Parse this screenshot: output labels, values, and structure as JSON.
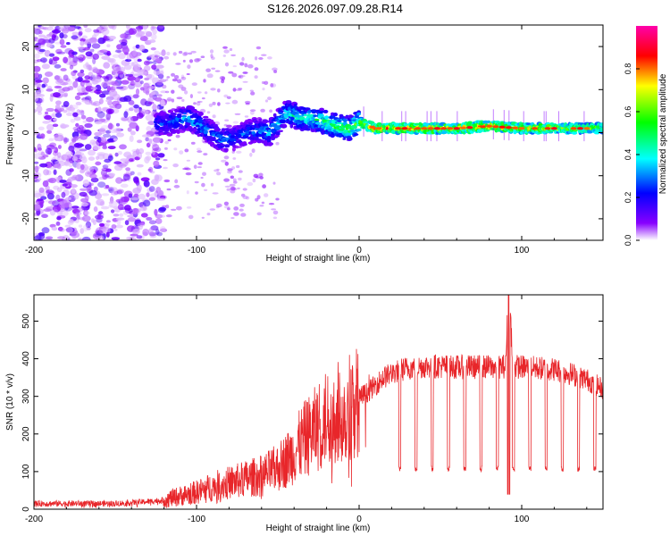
{
  "figure": {
    "title": "S126.2026.097.09.28.R14"
  },
  "chart_data": [
    {
      "type": "heatmap",
      "title": "S126.2026.097.09.28.R14",
      "xlabel": "Height of straight line (km)",
      "ylabel": "Frequency (Hz)",
      "xlim": [
        -200,
        150
      ],
      "ylim": [
        -25,
        25
      ],
      "xticks": [
        -200,
        -100,
        0,
        100
      ],
      "yticks": [
        -20,
        -10,
        0,
        10,
        20
      ],
      "colorbar": {
        "label": "Normalized spectral amplitude",
        "range": [
          0.0,
          1.0
        ],
        "ticks": [
          0.0,
          0.2,
          0.4,
          0.6,
          0.8
        ],
        "tick_labels": [
          "0.0",
          "0.2",
          "0.4",
          "0.6",
          "0.8"
        ],
        "colors": [
          "#ffffff",
          "#8800ff",
          "#0000ff",
          "#00ffff",
          "#00ff00",
          "#ffff00",
          "#ff0000",
          "#ff00aa"
        ]
      },
      "ridge": {
        "description_points": [
          {
            "x": -120,
            "freq": 2.0,
            "amp": 0.25
          },
          {
            "x": -105,
            "freq": 3.5,
            "amp": 0.35
          },
          {
            "x": -95,
            "freq": 1.0,
            "amp": 0.3
          },
          {
            "x": -85,
            "freq": -1.5,
            "amp": 0.3
          },
          {
            "x": -75,
            "freq": -1.0,
            "amp": 0.25
          },
          {
            "x": -65,
            "freq": 0.5,
            "amp": 0.3
          },
          {
            "x": -55,
            "freq": 0.0,
            "amp": 0.35
          },
          {
            "x": -45,
            "freq": 4.5,
            "amp": 0.4
          },
          {
            "x": -35,
            "freq": 3.5,
            "amp": 0.45
          },
          {
            "x": -25,
            "freq": 3.0,
            "amp": 0.45
          },
          {
            "x": -15,
            "freq": 1.5,
            "amp": 0.55
          },
          {
            "x": -5,
            "freq": 1.0,
            "amp": 0.5
          },
          {
            "x": 0,
            "freq": 2.5,
            "amp": 0.55
          },
          {
            "x": 10,
            "freq": 1.0,
            "amp": 0.75
          },
          {
            "x": 30,
            "freq": 1.0,
            "amp": 0.75
          },
          {
            "x": 60,
            "freq": 1.0,
            "amp": 0.7
          },
          {
            "x": 80,
            "freq": 1.5,
            "amp": 0.75
          },
          {
            "x": 100,
            "freq": 1.0,
            "amp": 0.7
          },
          {
            "x": 130,
            "freq": 1.0,
            "amp": 0.6
          },
          {
            "x": 150,
            "freq": 1.0,
            "amp": 0.55
          }
        ]
      }
    },
    {
      "type": "line",
      "xlabel": "Height of straight line (km)",
      "ylabel": "SNR (10 * v/v)",
      "xlim": [
        -200,
        150
      ],
      "ylim": [
        0,
        570
      ],
      "xticks": [
        -200,
        -100,
        0,
        100
      ],
      "yticks": [
        0,
        100,
        200,
        300,
        400,
        500
      ],
      "series": [
        {
          "name": "SNR",
          "color": "#e8262a",
          "x": [
            -200,
            -150,
            -130,
            -120,
            -110,
            -100,
            -90,
            -80,
            -70,
            -60,
            -50,
            -40,
            -35,
            -30,
            -25,
            -20,
            -15,
            -10,
            -5,
            0,
            5,
            10,
            15,
            20,
            25,
            30,
            40,
            50,
            60,
            70,
            80,
            90,
            92,
            95,
            100,
            110,
            120,
            130,
            140,
            150
          ],
          "values": [
            15,
            15,
            20,
            25,
            35,
            45,
            60,
            70,
            80,
            90,
            110,
            150,
            180,
            200,
            220,
            240,
            260,
            250,
            280,
            300,
            310,
            330,
            350,
            360,
            370,
            375,
            380,
            380,
            378,
            378,
            378,
            380,
            570,
            380,
            378,
            375,
            372,
            360,
            345,
            320
          ],
          "notches": {
            "start_x": 25,
            "spacing_x": 10,
            "low_value": 100,
            "count": 13
          }
        }
      ]
    }
  ]
}
